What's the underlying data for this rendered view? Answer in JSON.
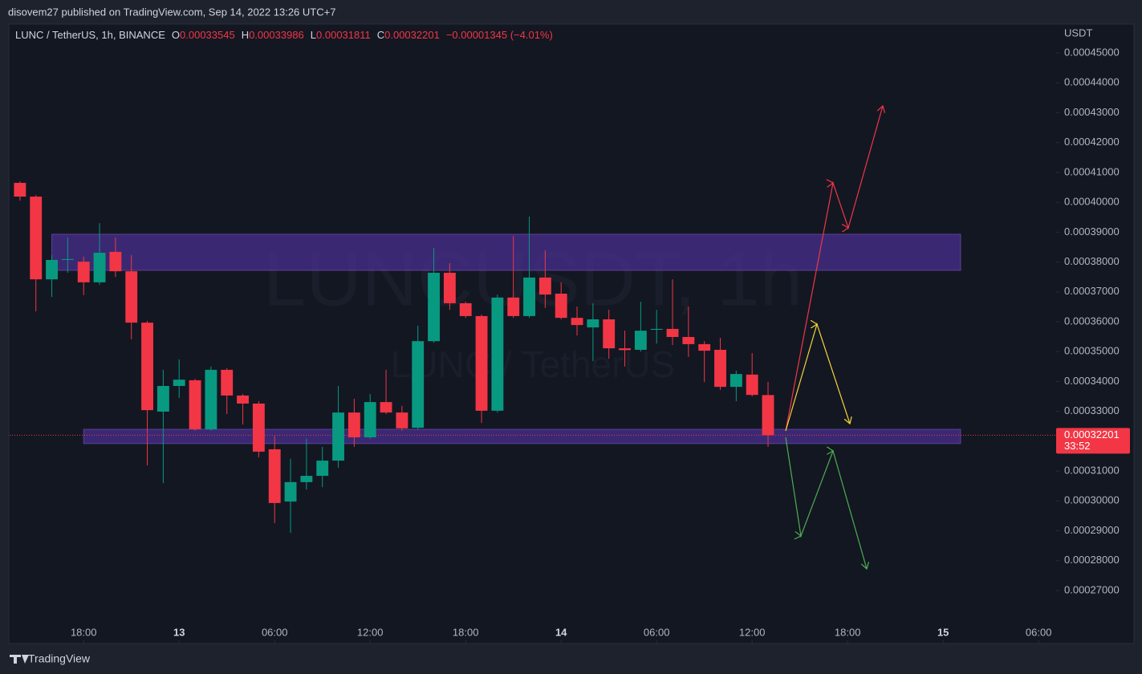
{
  "header": {
    "text": "disovem27 published on TradingView.com, Sep 14, 2022 13:26 UTC+7"
  },
  "footer": {
    "brand": "TradingView"
  },
  "chart_data": {
    "type": "candlestick",
    "title": "LUNC / TetherUS, 1h, BINANCE",
    "watermark": "LUNCUSDT, 1h",
    "watermark_subtitle": "LUNC / TetherUS",
    "legend": {
      "o_label": "O",
      "o": "0.00033545",
      "h_label": "H",
      "h": "0.00033986",
      "l_label": "L",
      "l": "0.00031811",
      "c_label": "C",
      "c": "0.00032201",
      "change": "−0.00001345 (−4.01%)"
    },
    "y_axis_label": "USDT",
    "up_color": "#089981",
    "down_color": "#f23645",
    "x": [
      0,
      1,
      2,
      3,
      4,
      5,
      6,
      7,
      8,
      9,
      10,
      11,
      12,
      13,
      14,
      15,
      16,
      17,
      18,
      19,
      20,
      21,
      22,
      23,
      24,
      25,
      26,
      27,
      28,
      29,
      30,
      31,
      32,
      33,
      34,
      35,
      36,
      37,
      38,
      39,
      40,
      41,
      42,
      43,
      44,
      45,
      46,
      47
    ],
    "open": [
      0.0004065,
      0.0004019,
      0.0003742,
      0.0003807,
      0.0003801,
      0.0003732,
      0.0003834,
      0.0003769,
      0.0003597,
      0.0003299,
      0.0003385,
      0.0003404,
      0.000324,
      0.0003439,
      0.0003353,
      0.0003326,
      0.0003173,
      0.0002998,
      0.0003063,
      0.0003084,
      0.0003135,
      0.0003296,
      0.0003213,
      0.0003331,
      0.0003296,
      0.0003245,
      0.0003535,
      0.0003764,
      0.0003662,
      0.0003619,
      0.0003302,
      0.0003681,
      0.0003619,
      0.0003748,
      0.0003694,
      0.0003613,
      0.0003581,
      0.0003608,
      0.0003511,
      0.0003506,
      0.0003573,
      0.0003576,
      0.0003549,
      0.0003525,
      0.0003506,
      0.0003382,
      0.0003423,
      0.00033545
    ],
    "high": [
      0.000407,
      0.0004024,
      0.0003823,
      0.0003882,
      0.0003818,
      0.000393,
      0.0003882,
      0.0003823,
      0.0003603,
      0.0003439,
      0.0003474,
      0.0003409,
      0.000345,
      0.0003444,
      0.0003358,
      0.0003334,
      0.0003218,
      0.0003141,
      0.0003208,
      0.0003181,
      0.0003385,
      0.0003342,
      0.0003358,
      0.0003439,
      0.0003318,
      0.0003587,
      0.0003847,
      0.0003796,
      0.0003667,
      0.0003624,
      0.0003691,
      0.0003887,
      0.0003952,
      0.0003839,
      0.0003732,
      0.0003651,
      0.0003662,
      0.000364,
      0.000357,
      0.0003667,
      0.000364,
      0.0003742,
      0.0003651,
      0.0003535,
      0.0003546,
      0.0003436,
      0.0003495,
      0.00033986
    ],
    "low": [
      0.0004006,
      0.0003635,
      0.0003683,
      0.0003764,
      0.0003689,
      0.0003724,
      0.000375,
      0.0003541,
      0.0003119,
      0.000306,
      0.0003345,
      0.0003235,
      0.0003235,
      0.0003291,
      0.0003256,
      0.0003146,
      0.0002926,
      0.0002893,
      0.0003038,
      0.0003046,
      0.0003111,
      0.0003181,
      0.0003208,
      0.0003291,
      0.0003235,
      0.000324,
      0.000353,
      0.000364,
      0.0003613,
      0.0003261,
      0.0003296,
      0.0003613,
      0.0003613,
      0.0003646,
      0.0003608,
      0.0003554,
      0.0003468,
      0.0003476,
      0.000345,
      0.00035,
      0.0003527,
      0.0003522,
      0.0003482,
      0.0003398,
      0.0003372,
      0.0003334,
      0.000335,
      0.00031811
    ],
    "close": [
      0.0004019,
      0.0003742,
      0.0003807,
      0.000381,
      0.0003732,
      0.0003831,
      0.0003769,
      0.0003597,
      0.0003304,
      0.0003385,
      0.0003406,
      0.000324,
      0.0003439,
      0.0003353,
      0.0003326,
      0.0003165,
      0.0002993,
      0.0003063,
      0.0003084,
      0.0003135,
      0.0003296,
      0.0003213,
      0.0003331,
      0.0003296,
      0.0003243,
      0.0003535,
      0.0003764,
      0.0003662,
      0.0003619,
      0.0003302,
      0.0003681,
      0.0003619,
      0.0003748,
      0.0003691,
      0.0003613,
      0.0003589,
      0.0003608,
      0.0003511,
      0.0003505,
      0.000357,
      0.0003576,
      0.0003549,
      0.0003525,
      0.0003503,
      0.0003382,
      0.0003425,
      0.0003355,
      0.00032201
    ],
    "last_price": {
      "value": 0.00032201,
      "label": "0.00032201",
      "countdown": "33:52"
    },
    "zones": [
      {
        "color": "#4a2f8f",
        "ylim": [
          0.0003772,
          0.0003893
        ],
        "xlim": [
          2,
          59.1
        ]
      },
      {
        "color": "#4a2f8f",
        "ylim": [
          0.0003192,
          0.000324
        ],
        "xlim": [
          4,
          59.1
        ]
      }
    ],
    "xlim": [
      -0.65,
      65.1
    ],
    "ylim": [
      0.00025226,
      0.00045967
    ],
    "xticks": [
      {
        "value": 4,
        "label": "18:00"
      },
      {
        "value": 10,
        "label": "13",
        "bold": true
      },
      {
        "value": 16,
        "label": "06:00"
      },
      {
        "value": 22,
        "label": "12:00"
      },
      {
        "value": 28,
        "label": "18:00"
      },
      {
        "value": 34,
        "label": "14",
        "bold": true
      },
      {
        "value": 40,
        "label": "06:00"
      },
      {
        "value": 46,
        "label": "12:00"
      },
      {
        "value": 52,
        "label": "18:00"
      },
      {
        "value": 58,
        "label": "15",
        "bold": true
      },
      {
        "value": 64,
        "label": "06:00"
      }
    ],
    "yticks": [
      {
        "value": 0.00027,
        "label": "0.00027000"
      },
      {
        "value": 0.00028,
        "label": "0.00028000"
      },
      {
        "value": 0.00029,
        "label": "0.00029000"
      },
      {
        "value": 0.0003,
        "label": "0.00030000"
      },
      {
        "value": 0.00031,
        "label": "0.00031000"
      },
      {
        "value": 0.00032,
        "label": "0.00032000"
      },
      {
        "value": 0.00033,
        "label": "0.00033000"
      },
      {
        "value": 0.00034,
        "label": "0.00034000"
      },
      {
        "value": 0.00035,
        "label": "0.00035000"
      },
      {
        "value": 0.00036,
        "label": "0.00036000"
      },
      {
        "value": 0.00037,
        "label": "0.00037000"
      },
      {
        "value": 0.00038,
        "label": "0.00038000"
      },
      {
        "value": 0.00039,
        "label": "0.00039000"
      },
      {
        "value": 0.0004,
        "label": "0.00040000"
      },
      {
        "value": 0.00041,
        "label": "0.00041000"
      },
      {
        "value": 0.00042,
        "label": "0.00042000"
      },
      {
        "value": 0.00043,
        "label": "0.00043000"
      },
      {
        "value": 0.00044,
        "label": "0.00044000"
      },
      {
        "value": 0.00045,
        "label": "0.00045000"
      }
    ]
  }
}
